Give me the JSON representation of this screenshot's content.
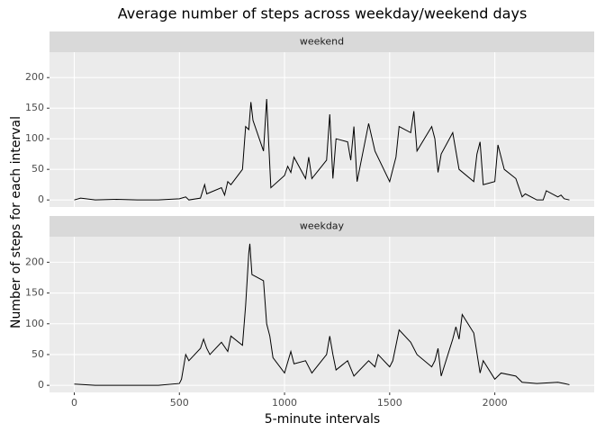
{
  "title": "Average number of steps across weekday/weekend days",
  "x_label": "5-minute intervals",
  "y_label": "Number of steps for each interval",
  "chart_data": [
    {
      "type": "line",
      "panel": "weekend",
      "color": "#000000",
      "grid": true,
      "x": [
        0,
        30,
        100,
        200,
        300,
        400,
        500,
        530,
        545,
        600,
        620,
        630,
        700,
        715,
        730,
        745,
        800,
        815,
        830,
        840,
        850,
        900,
        915,
        925,
        935,
        1000,
        1015,
        1030,
        1045,
        1100,
        1115,
        1130,
        1200,
        1215,
        1230,
        1245,
        1300,
        1315,
        1330,
        1345,
        1400,
        1430,
        1500,
        1530,
        1545,
        1600,
        1615,
        1630,
        1700,
        1715,
        1730,
        1745,
        1800,
        1830,
        1900,
        1915,
        1930,
        1945,
        2000,
        2015,
        2045,
        2100,
        2115,
        2130,
        2145,
        2200,
        2230,
        2245,
        2300,
        2315,
        2330,
        2355
      ],
      "values": [
        0,
        3,
        0,
        1,
        0,
        0,
        2,
        5,
        0,
        3,
        25,
        10,
        20,
        8,
        30,
        25,
        50,
        120,
        115,
        160,
        130,
        80,
        165,
        90,
        20,
        40,
        55,
        45,
        70,
        35,
        70,
        35,
        65,
        140,
        35,
        100,
        95,
        65,
        120,
        30,
        125,
        80,
        30,
        70,
        120,
        110,
        145,
        80,
        120,
        100,
        45,
        75,
        110,
        50,
        30,
        75,
        95,
        25,
        30,
        90,
        50,
        35,
        20,
        5,
        10,
        0,
        0,
        15,
        5,
        8,
        2,
        0
      ],
      "xlim": [
        -117.75,
        2472.75
      ],
      "ylim": [
        -11.5,
        241.5
      ],
      "xticks": [
        0,
        500,
        1000,
        1500,
        2000
      ],
      "yticks": [
        0,
        50,
        100,
        150,
        200
      ]
    },
    {
      "type": "line",
      "panel": "weekday",
      "color": "#000000",
      "grid": true,
      "x": [
        0,
        100,
        200,
        300,
        400,
        500,
        510,
        530,
        545,
        600,
        615,
        630,
        645,
        700,
        730,
        745,
        800,
        815,
        830,
        835,
        845,
        900,
        915,
        930,
        945,
        1000,
        1030,
        1045,
        1100,
        1130,
        1200,
        1215,
        1230,
        1245,
        1300,
        1330,
        1400,
        1430,
        1445,
        1500,
        1515,
        1545,
        1600,
        1630,
        1700,
        1715,
        1730,
        1745,
        1800,
        1815,
        1830,
        1845,
        1900,
        1930,
        1945,
        2000,
        2030,
        2100,
        2130,
        2200,
        2300,
        2330,
        2355
      ],
      "values": [
        2,
        0,
        0,
        0,
        0,
        3,
        10,
        50,
        40,
        60,
        75,
        60,
        50,
        70,
        55,
        80,
        65,
        130,
        215,
        230,
        180,
        170,
        100,
        80,
        45,
        20,
        55,
        35,
        40,
        20,
        50,
        80,
        50,
        25,
        40,
        15,
        40,
        30,
        50,
        30,
        40,
        90,
        70,
        50,
        30,
        40,
        60,
        15,
        75,
        95,
        75,
        115,
        85,
        20,
        40,
        10,
        20,
        15,
        5,
        3,
        5,
        3,
        1
      ],
      "xlim": [
        -117.75,
        2472.75
      ],
      "ylim": [
        -11.5,
        241.5
      ],
      "xticks": [
        0,
        500,
        1000,
        1500,
        2000
      ],
      "yticks": [
        0,
        50,
        100,
        150,
        200
      ]
    }
  ]
}
